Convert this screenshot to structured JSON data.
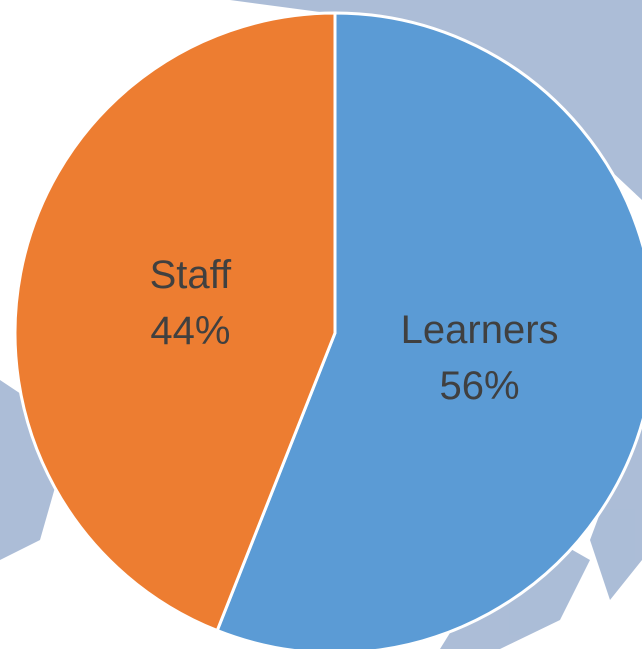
{
  "chart_data": {
    "type": "pie",
    "categories": [
      "Learners",
      "Staff"
    ],
    "values": [
      56,
      44
    ],
    "value_labels": [
      "56%",
      "44%"
    ],
    "colors": [
      "#5b9bd5",
      "#ed7d31"
    ]
  }
}
